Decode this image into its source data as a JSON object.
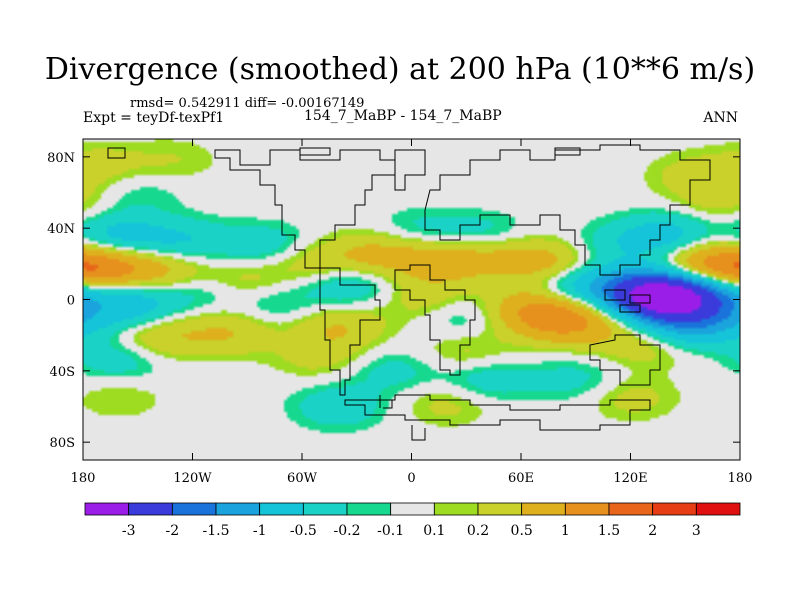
{
  "chart_data": {
    "type": "heatmap",
    "title": "Divergence (smoothed) at 200 hPa (10**6 m/s)",
    "stats_text": "rmsd= 0.542911 diff= -0.00167149",
    "left_label": "Expt = teyDf-texPf1",
    "center_label": "154_7_MaBP - 154_7_MaBP",
    "right_label": "ANN",
    "x_ticks": [
      "180",
      "120W",
      "60W",
      "0",
      "60E",
      "120E",
      "180"
    ],
    "x_tick_values": [
      -180,
      -120,
      -60,
      0,
      60,
      120,
      180
    ],
    "y_ticks": [
      "80N",
      "40N",
      "0",
      "40S",
      "80S"
    ],
    "y_tick_values": [
      80,
      40,
      0,
      -40,
      -80
    ],
    "xlim": [
      -180,
      180
    ],
    "ylim": [
      -90,
      90
    ],
    "colorbar": {
      "labels": [
        "-3",
        "-2",
        "-1.5",
        "-1",
        "-0.5",
        "-0.2",
        "-0.1",
        "0.1",
        "0.2",
        "0.5",
        "1",
        "1.5",
        "2",
        "3"
      ],
      "colors": [
        "#9b1de8",
        "#3b3bdc",
        "#1a73db",
        "#1aa3dc",
        "#15c4d9",
        "#1ad3c6",
        "#16d98f",
        "#e6e6e6",
        "#9ddc21",
        "#c9d12a",
        "#deb01e",
        "#e6901d",
        "#e8651a",
        "#e73d15",
        "#e01010"
      ]
    },
    "anomalies": [
      {
        "lon": -168,
        "lat": 17,
        "value": 1.3
      },
      {
        "lon": -135,
        "lat": 16,
        "value": 0.6
      },
      {
        "lon": -160,
        "lat": 35,
        "value": -0.7
      },
      {
        "lon": -125,
        "lat": 32,
        "value": -0.5
      },
      {
        "lon": -160,
        "lat": 3,
        "value": -0.6
      },
      {
        "lon": -115,
        "lat": 6,
        "value": -0.4
      },
      {
        "lon": -150,
        "lat": -8,
        "value": -0.5
      },
      {
        "lon": -140,
        "lat": -20,
        "value": 0.6
      },
      {
        "lon": -100,
        "lat": -18,
        "value": 0.5
      },
      {
        "lon": -160,
        "lat": -33,
        "value": -0.4
      },
      {
        "lon": -95,
        "lat": 10,
        "value": 0.4
      },
      {
        "lon": -75,
        "lat": -3,
        "value": -0.3
      },
      {
        "lon": -80,
        "lat": 30,
        "value": -0.4
      },
      {
        "lon": -55,
        "lat": 20,
        "value": 0.4
      },
      {
        "lon": -35,
        "lat": 8,
        "value": -0.5
      },
      {
        "lon": -40,
        "lat": -15,
        "value": 0.5
      },
      {
        "lon": -50,
        "lat": -32,
        "value": 0.3
      },
      {
        "lon": -20,
        "lat": 25,
        "value": 0.6
      },
      {
        "lon": 15,
        "lat": 22,
        "value": 0.7
      },
      {
        "lon": 45,
        "lat": 25,
        "value": 0.5
      },
      {
        "lon": 75,
        "lat": 20,
        "value": 0.7
      },
      {
        "lon": 40,
        "lat": 35,
        "value": -0.4
      },
      {
        "lon": 5,
        "lat": 38,
        "value": -0.3
      },
      {
        "lon": 10,
        "lat": 0,
        "value": 0.4
      },
      {
        "lon": 30,
        "lat": -8,
        "value": -0.4
      },
      {
        "lon": 80,
        "lat": -10,
        "value": 1.1
      },
      {
        "lon": 60,
        "lat": -5,
        "value": 0.6
      },
      {
        "lon": 90,
        "lat": 8,
        "value": -0.7
      },
      {
        "lon": 125,
        "lat": 5,
        "value": -1.6
      },
      {
        "lon": 140,
        "lat": 0,
        "value": -2.6
      },
      {
        "lon": 160,
        "lat": 5,
        "value": -1.2
      },
      {
        "lon": 150,
        "lat": -15,
        "value": -0.8
      },
      {
        "lon": 170,
        "lat": -10,
        "value": -0.6
      },
      {
        "lon": 150,
        "lat": 25,
        "value": 0.3
      },
      {
        "lon": 165,
        "lat": 17,
        "value": 1.2
      },
      {
        "lon": 140,
        "lat": 35,
        "value": -0.8
      },
      {
        "lon": 110,
        "lat": 30,
        "value": -0.3
      },
      {
        "lon": 100,
        "lat": -15,
        "value": 0.4
      },
      {
        "lon": 130,
        "lat": -25,
        "value": 0.4
      },
      {
        "lon": 30,
        "lat": -30,
        "value": 0.3
      },
      {
        "lon": -10,
        "lat": -40,
        "value": -0.3
      },
      {
        "lon": 40,
        "lat": -45,
        "value": -0.4
      },
      {
        "lon": 90,
        "lat": -45,
        "value": -0.3
      },
      {
        "lon": -40,
        "lat": -60,
        "value": -0.4
      },
      {
        "lon": 20,
        "lat": -58,
        "value": 0.3
      },
      {
        "lon": 120,
        "lat": -55,
        "value": 0.3
      },
      {
        "lon": -170,
        "lat": 75,
        "value": 0.3
      },
      {
        "lon": -150,
        "lat": 60,
        "value": -0.2
      },
      {
        "lon": 155,
        "lat": 70,
        "value": 0.3
      },
      {
        "lon": 170,
        "lat": 55,
        "value": 0.3
      },
      {
        "lon": -130,
        "lat": 78,
        "value": 0.2
      },
      {
        "lon": -160,
        "lat": -55,
        "value": 0.2
      }
    ]
  }
}
